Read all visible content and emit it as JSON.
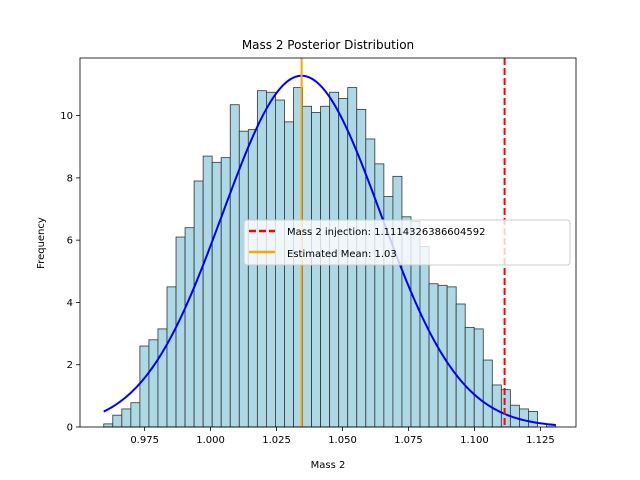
{
  "chart_data": {
    "type": "bar",
    "title": "Mass 2 Posterior Distribution",
    "xlabel": "Mass 2",
    "ylabel": "Frequency",
    "xlim": [
      0.9505,
      1.1385
    ],
    "ylim": [
      0,
      11.85
    ],
    "xticks": [
      0.975,
      1.0,
      1.025,
      1.05,
      1.075,
      1.1,
      1.125
    ],
    "xtick_labels": [
      "0.975",
      "1.000",
      "1.025",
      "1.050",
      "1.075",
      "1.100",
      "1.125"
    ],
    "yticks": [
      0,
      2,
      4,
      6,
      8,
      10
    ],
    "ytick_labels": [
      "0",
      "2",
      "4",
      "6",
      "8",
      "10"
    ],
    "bin_start": 0.9595,
    "bin_width": 0.003425,
    "values": [
      0.1,
      0.38,
      0.58,
      0.78,
      2.6,
      2.8,
      3.15,
      4.5,
      6.1,
      6.4,
      7.9,
      8.7,
      8.5,
      8.65,
      10.35,
      9.5,
      9.55,
      10.8,
      10.75,
      10.5,
      9.8,
      10.9,
      10.3,
      10.1,
      10.3,
      10.75,
      10.55,
      10.9,
      10.2,
      9.25,
      8.45,
      7.4,
      8.05,
      6.75,
      6.6,
      5.8,
      4.6,
      4.55,
      4.5,
      3.95,
      3.2,
      3.15,
      2.15,
      1.35,
      1.2,
      0.7,
      0.58,
      0.5,
      0.0,
      0.08
    ],
    "fit_curve": {
      "mean": 1.0345,
      "sigma": 0.03,
      "peak": 11.28,
      "x_range": [
        0.9595,
        1.1307
      ],
      "color": "#0000ff"
    },
    "lines": [
      {
        "name": "Mass 2 injection: 1.1114326386604592",
        "x": 1.1114326386604592,
        "color": "#ff0000",
        "style": "dashed"
      },
      {
        "name": "Estimated Mean: 1.03",
        "x": 1.0345,
        "color": "#ffa500",
        "style": "solid"
      }
    ],
    "bar_fill": "#add8e6",
    "bar_edge": "#333333",
    "legend_placement": "center-right",
    "grid": false
  }
}
